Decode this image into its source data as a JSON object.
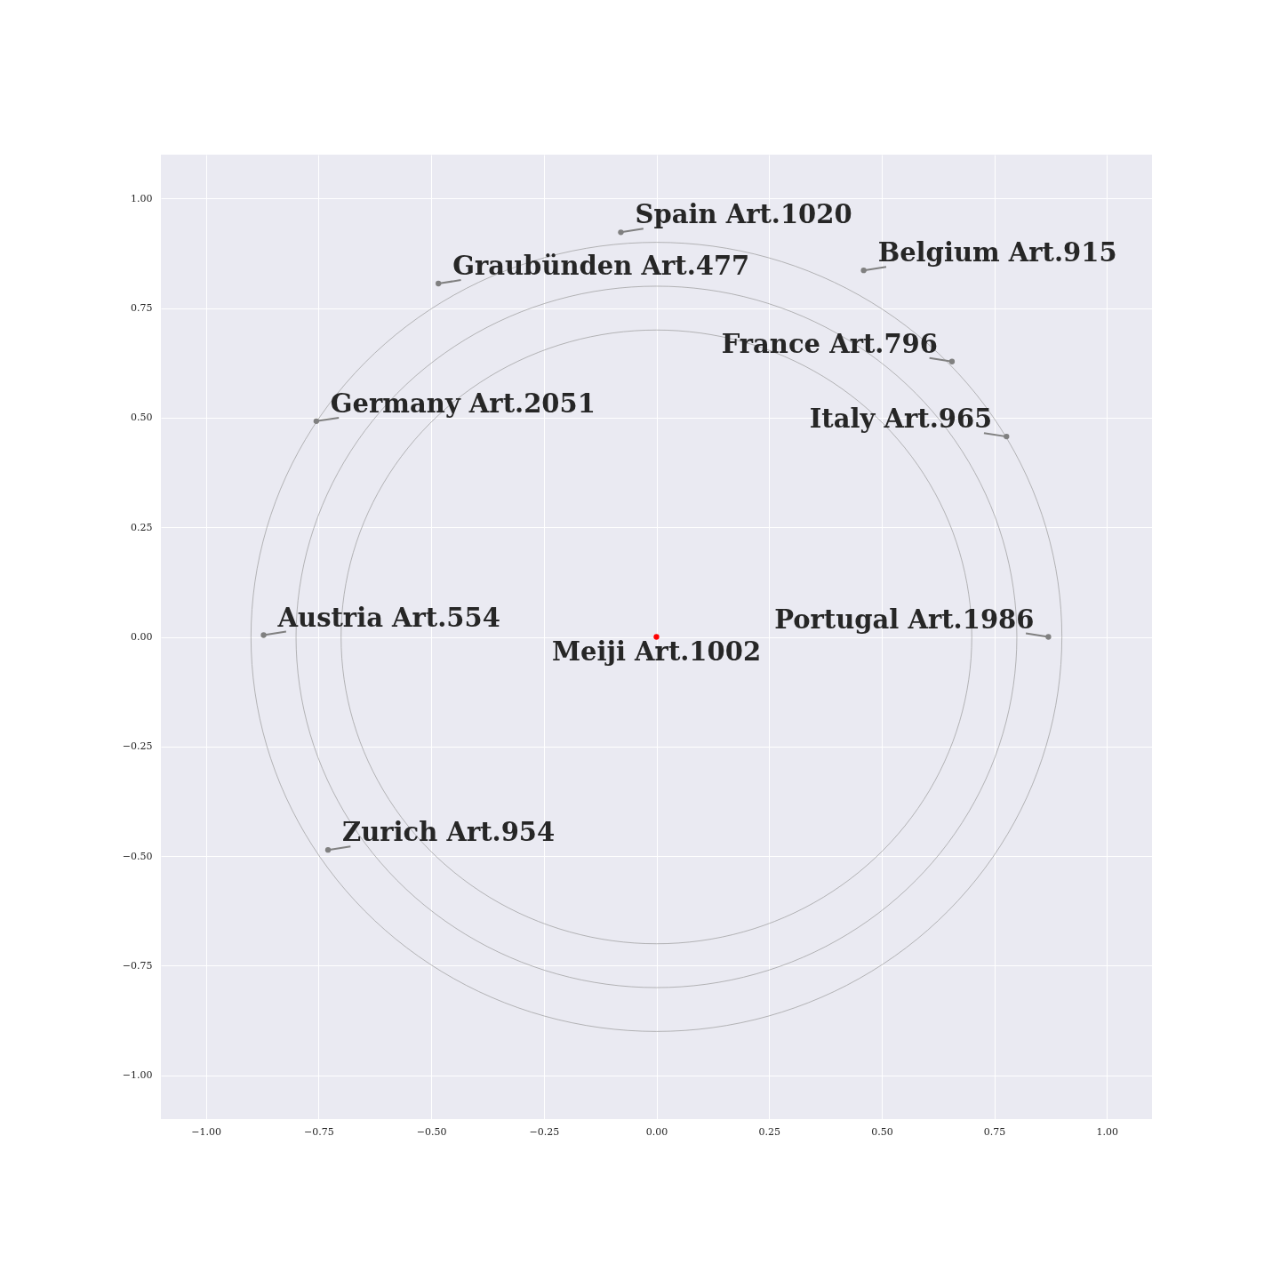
{
  "chart_data": {
    "type": "scatter",
    "xlim": [
      -1.1,
      1.1
    ],
    "ylim": [
      -1.1,
      1.1
    ],
    "xticks": [
      {
        "value": -1,
        "label": "−1.00"
      },
      {
        "value": -0.75,
        "label": "−0.75"
      },
      {
        "value": -0.5,
        "label": "−0.50"
      },
      {
        "value": -0.25,
        "label": "−0.25"
      },
      {
        "value": 0,
        "label": "0.00"
      },
      {
        "value": 0.25,
        "label": "0.25"
      },
      {
        "value": 0.5,
        "label": "0.50"
      },
      {
        "value": 0.75,
        "label": "0.75"
      },
      {
        "value": 1,
        "label": "1.00"
      }
    ],
    "yticks": [
      {
        "value": -1,
        "label": "−1.00"
      },
      {
        "value": -0.75,
        "label": "−0.75"
      },
      {
        "value": -0.5,
        "label": "−0.50"
      },
      {
        "value": -0.25,
        "label": "−0.25"
      },
      {
        "value": 0,
        "label": "0.00"
      },
      {
        "value": 0.25,
        "label": "0.25"
      },
      {
        "value": 0.5,
        "label": "0.50"
      },
      {
        "value": 0.75,
        "label": "0.75"
      },
      {
        "value": 1,
        "label": "1.00"
      }
    ],
    "grid": true,
    "marker": "circle",
    "series": [
      {
        "x": [
          -0.079,
          -0.484,
          0.46,
          0.656,
          0.777,
          -0.755,
          -0.872,
          0.87,
          -0.729,
          0
        ],
        "values": [
          0.923,
          0.806,
          0.836,
          0.628,
          0.457,
          0.492,
          0.004,
          0,
          -0.486,
          0
        ],
        "colors": [
          "#808080",
          "#808080",
          "#808080",
          "#808080",
          "#808080",
          "#808080",
          "#808080",
          "#808080",
          "#808080",
          "#ff0000"
        ]
      }
    ],
    "annotations": [
      {
        "text": "Spain Art.1020",
        "x": -0.079,
        "y": 0.923
      },
      {
        "text": "Graubünden Art.477",
        "x": -0.484,
        "y": 0.806
      },
      {
        "text": "Belgium Art.915",
        "x": 0.46,
        "y": 0.836
      },
      {
        "text": "France Art.796",
        "x": 0.656,
        "y": 0.628
      },
      {
        "text": "Italy Art.965",
        "x": 0.777,
        "y": 0.457
      },
      {
        "text": "Germany Art.2051",
        "x": -0.755,
        "y": 0.492
      },
      {
        "text": "Austria Art.554",
        "x": -0.872,
        "y": 0.004
      },
      {
        "text": "Portugal Art.1986",
        "x": 0.87,
        "y": 0
      },
      {
        "text": "Zurich Art.954",
        "x": -0.729,
        "y": -0.486
      },
      {
        "text": "Meiji Art.1002",
        "x": 0,
        "y": 0
      }
    ]
  }
}
